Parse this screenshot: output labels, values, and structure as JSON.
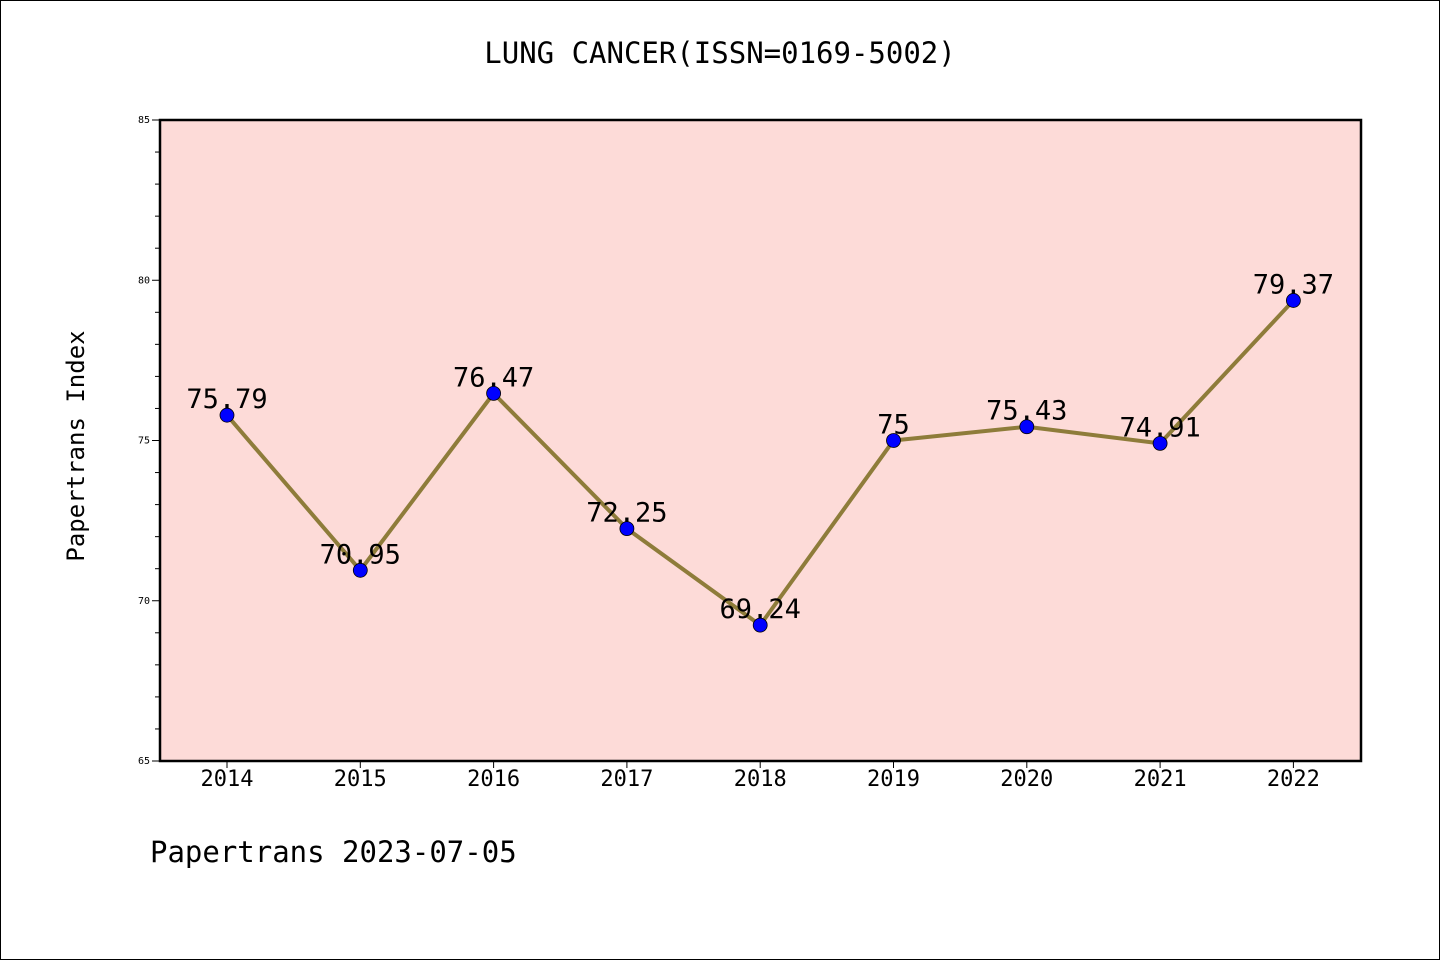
{
  "chart_data": {
    "type": "line",
    "title": "LUNG CANCER(ISSN=0169-5002)",
    "xlabel": "",
    "ylabel": "Papertrans Index",
    "categories": [
      "2014",
      "2015",
      "2016",
      "2017",
      "2018",
      "2019",
      "2020",
      "2021",
      "2022"
    ],
    "series": [
      {
        "values": [
          75.79,
          70.95,
          76.47,
          72.25,
          69.24,
          75,
          75.43,
          74.91,
          79.37
        ],
        "labels": [
          "75.79",
          "70.95",
          "76.47",
          "72.25",
          "69.24",
          "75",
          "75.43",
          "74.91",
          "79.37"
        ]
      }
    ],
    "ylim": [
      65,
      85
    ],
    "yticks": [
      "65",
      "70",
      "75",
      "80",
      "85"
    ],
    "grid": false,
    "colors": {
      "plot_background": "#fddbd8",
      "line": "#8e7c3a",
      "marker": "#0000ff"
    }
  },
  "footer": "Papertrans 2023-07-05"
}
